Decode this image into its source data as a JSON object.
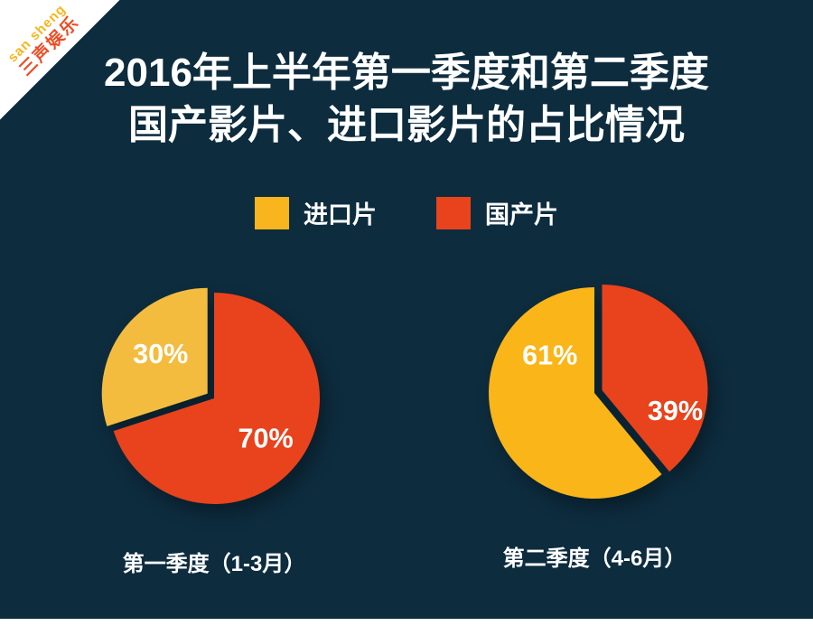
{
  "brand_ribbon": {
    "line1": "san sheng",
    "line2": "三声娱乐"
  },
  "title": {
    "line1": "2016年上半年第一季度和第二季度",
    "line2": "国产影片、进口影片的占比情况"
  },
  "legend": {
    "items": [
      {
        "label": "进口片",
        "color": "#f8b51e"
      },
      {
        "label": "国产片",
        "color": "#e8431c"
      }
    ]
  },
  "chart_data": [
    {
      "type": "pie",
      "title": "第一季度（1-3月）",
      "legend_position": "top",
      "start_angle": -108,
      "slices": [
        {
          "label": "进口片",
          "value": 30,
          "display": "30%",
          "color": "#f4bc3f",
          "explode": 10,
          "label_angle": -50,
          "label_r": 0.58
        },
        {
          "label": "国产片",
          "value": 70,
          "display": "70%",
          "color": "#e8431c",
          "explode": 0,
          "label_angle": 128,
          "label_r": 0.62
        }
      ]
    },
    {
      "type": "pie",
      "title": "第二季度（4-6月）",
      "legend_position": "top",
      "start_angle": 140.4,
      "slices": [
        {
          "label": "进口片",
          "value": 61,
          "display": "61%",
          "color": "#fab519",
          "explode": 0,
          "label_angle": -50,
          "label_r": 0.55
        },
        {
          "label": "国产片",
          "value": 39,
          "display": "39%",
          "color": "#e8431c",
          "explode": 10,
          "label_angle": 106,
          "label_r": 0.72
        }
      ]
    }
  ],
  "colors": {
    "background": "#0d2c3e",
    "text": "#ffffff",
    "ribbon_background": "#ffffff",
    "ribbon_en": "#f8b51e",
    "ribbon_cn": "#ef4b23"
  }
}
